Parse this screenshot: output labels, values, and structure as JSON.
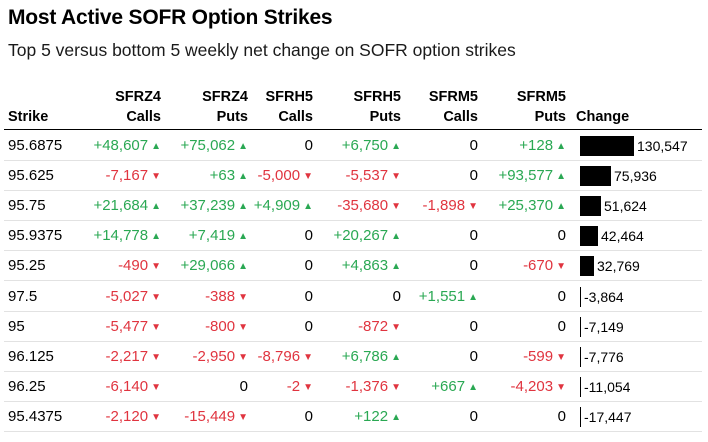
{
  "title": "Most Active SOFR Option Strikes",
  "subtitle": "Top 5 versus bottom 5 weekly net change on SOFR option strikes",
  "headers": {
    "strike": "Strike",
    "change": "Change",
    "columns": [
      {
        "line1": "SFRZ4",
        "line2": "Calls"
      },
      {
        "line1": "SFRZ4",
        "line2": "Puts"
      },
      {
        "line1": "SFRH5",
        "line2": "Calls"
      },
      {
        "line1": "SFRH5",
        "line2": "Puts"
      },
      {
        "line1": "SFRM5",
        "line2": "Calls"
      },
      {
        "line1": "SFRM5",
        "line2": "Puts"
      }
    ]
  },
  "colors": {
    "positive": "#2aa853",
    "negative": "#e0343f",
    "bar": "#000000"
  },
  "icons": {
    "up": "triangle-up-icon",
    "down": "triangle-down-icon"
  },
  "chart_data": {
    "type": "table",
    "title": "Most Active SOFR Option Strikes",
    "subtitle": "Top 5 versus bottom 5 weekly net change on SOFR option strikes",
    "columns": [
      "Strike",
      "SFRZ4 Calls",
      "SFRZ4 Puts",
      "SFRH5 Calls",
      "SFRH5 Puts",
      "SFRM5 Calls",
      "SFRM5 Puts",
      "Change"
    ],
    "rows": [
      {
        "strike": "95.6875",
        "cells": [
          "+48,607",
          "+75,062",
          "0",
          "+6,750",
          "0",
          "+128"
        ],
        "change": 130547,
        "change_label": "130,547"
      },
      {
        "strike": "95.625",
        "cells": [
          "-7,167",
          "+63",
          "-5,000",
          "-5,537",
          "0",
          "+93,577"
        ],
        "change": 75936,
        "change_label": "75,936"
      },
      {
        "strike": "95.75",
        "cells": [
          "+21,684",
          "+37,239",
          "+4,909",
          "-35,680",
          "-1,898",
          "+25,370"
        ],
        "change": 51624,
        "change_label": "51,624"
      },
      {
        "strike": "95.9375",
        "cells": [
          "+14,778",
          "+7,419",
          "0",
          "+20,267",
          "0",
          "0"
        ],
        "change": 42464,
        "change_label": "42,464"
      },
      {
        "strike": "95.25",
        "cells": [
          "-490",
          "+29,066",
          "0",
          "+4,863",
          "0",
          "-670"
        ],
        "change": 32769,
        "change_label": "32,769"
      },
      {
        "strike": "97.5",
        "cells": [
          "-5,027",
          "-388",
          "0",
          "0",
          "+1,551",
          "0"
        ],
        "change": -3864,
        "change_label": "-3,864"
      },
      {
        "strike": "95",
        "cells": [
          "-5,477",
          "-800",
          "0",
          "-872",
          "0",
          "0"
        ],
        "change": -7149,
        "change_label": "-7,149"
      },
      {
        "strike": "96.125",
        "cells": [
          "-2,217",
          "-2,950",
          "-8,796",
          "+6,786",
          "0",
          "-599"
        ],
        "change": -7776,
        "change_label": "-7,776"
      },
      {
        "strike": "96.25",
        "cells": [
          "-6,140",
          "0",
          "-2",
          "-1,376",
          "+667",
          "-4,203"
        ],
        "change": -11054,
        "change_label": "-11,054"
      },
      {
        "strike": "95.4375",
        "cells": [
          "-2,120",
          "-15,449",
          "0",
          "+122",
          "0",
          "0"
        ],
        "change": -17447,
        "change_label": "-17,447"
      }
    ]
  }
}
